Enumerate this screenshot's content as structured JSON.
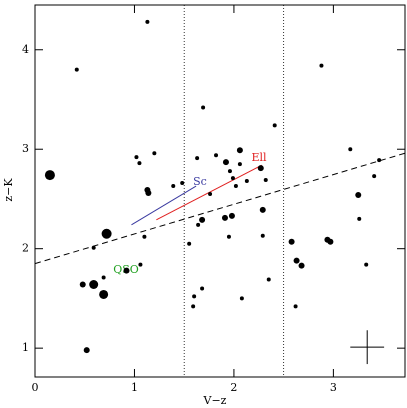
{
  "chart_data": {
    "type": "scatter",
    "x_label": "V−z",
    "y_label": "z−K",
    "xlim": [
      0,
      3.72
    ],
    "ylim": [
      0.71,
      4.45
    ],
    "xticks": [
      0,
      1,
      2,
      3
    ],
    "yticks": [
      1,
      2,
      3,
      4
    ],
    "series": [
      {
        "color": "#000000",
        "x": [
          1.13,
          0.42,
          2.88,
          1.69,
          2.41,
          0.15,
          1.02,
          1.05,
          1.2,
          1.63,
          1.82,
          1.92,
          2.06,
          1.96,
          1.99,
          2.06,
          2.02,
          2.13,
          2.27,
          3.17,
          3.46,
          3.41,
          3.25,
          1.13,
          1.14,
          1.39,
          1.48,
          2.32,
          1.76,
          2.29,
          1.68,
          1.64,
          1.91,
          1.98,
          3.26,
          0.72,
          1.1,
          1.55,
          1.95,
          2.29,
          2.58,
          2.94,
          2.97,
          0.59,
          2.63,
          2.68,
          3.33,
          2.35,
          1.06,
          0.92,
          0.48,
          0.59,
          0.69,
          0.69,
          1.68,
          1.6,
          1.59,
          2.08,
          2.62,
          0.52
        ],
        "y": [
          4.28,
          3.8,
          3.84,
          3.42,
          3.24,
          2.74,
          2.92,
          2.86,
          2.96,
          2.91,
          2.94,
          2.87,
          2.99,
          2.78,
          2.71,
          2.85,
          2.63,
          2.68,
          2.81,
          3.0,
          2.89,
          2.73,
          2.54,
          2.59,
          2.56,
          2.63,
          2.66,
          2.69,
          2.55,
          2.39,
          2.29,
          2.24,
          2.31,
          2.33,
          2.3,
          2.15,
          2.12,
          2.05,
          2.12,
          2.13,
          2.07,
          2.09,
          2.07,
          2.01,
          1.88,
          1.83,
          1.84,
          1.69,
          1.84,
          1.78,
          1.64,
          1.64,
          1.54,
          1.71,
          1.6,
          1.52,
          1.42,
          1.5,
          1.42,
          0.98
        ],
        "sizes": [
          2,
          2,
          2,
          2,
          2,
          5,
          2,
          2,
          2,
          2,
          2,
          3,
          3,
          2,
          2,
          2,
          2,
          2,
          3,
          2,
          2,
          2,
          3,
          3,
          3,
          2,
          2,
          2,
          2,
          3,
          3,
          2,
          3,
          3,
          2,
          5,
          2,
          2,
          2,
          2,
          3,
          3,
          3,
          2,
          3,
          3,
          2,
          2,
          2,
          3,
          3,
          4.5,
          4.5,
          2,
          2,
          2,
          2,
          2,
          2,
          3
        ]
      }
    ],
    "vlines": [
      1.5,
      2.5
    ],
    "lines": [
      {
        "x": [
          0,
          3.72
        ],
        "y": [
          1.85,
          2.96
        ],
        "color": "#000000",
        "style": "dashed"
      },
      {
        "x": [
          0.97,
          1.62
        ],
        "y": [
          2.24,
          2.63
        ],
        "color": "#3a3aa0",
        "style": "solid"
      },
      {
        "x": [
          1.22,
          2.28
        ],
        "y": [
          2.29,
          2.84
        ],
        "color": "#e02020",
        "style": "solid"
      }
    ],
    "annotations": [
      {
        "text": "Sc",
        "color": "#3a3aa0"
      },
      {
        "text": "Ell",
        "color": "#e02020"
      },
      {
        "text": "QSO",
        "color": "#20a020"
      }
    ],
    "error_cross": {
      "x": 3.34,
      "y": 1.01,
      "xerr": 0.17,
      "yerr": 0.17
    }
  }
}
